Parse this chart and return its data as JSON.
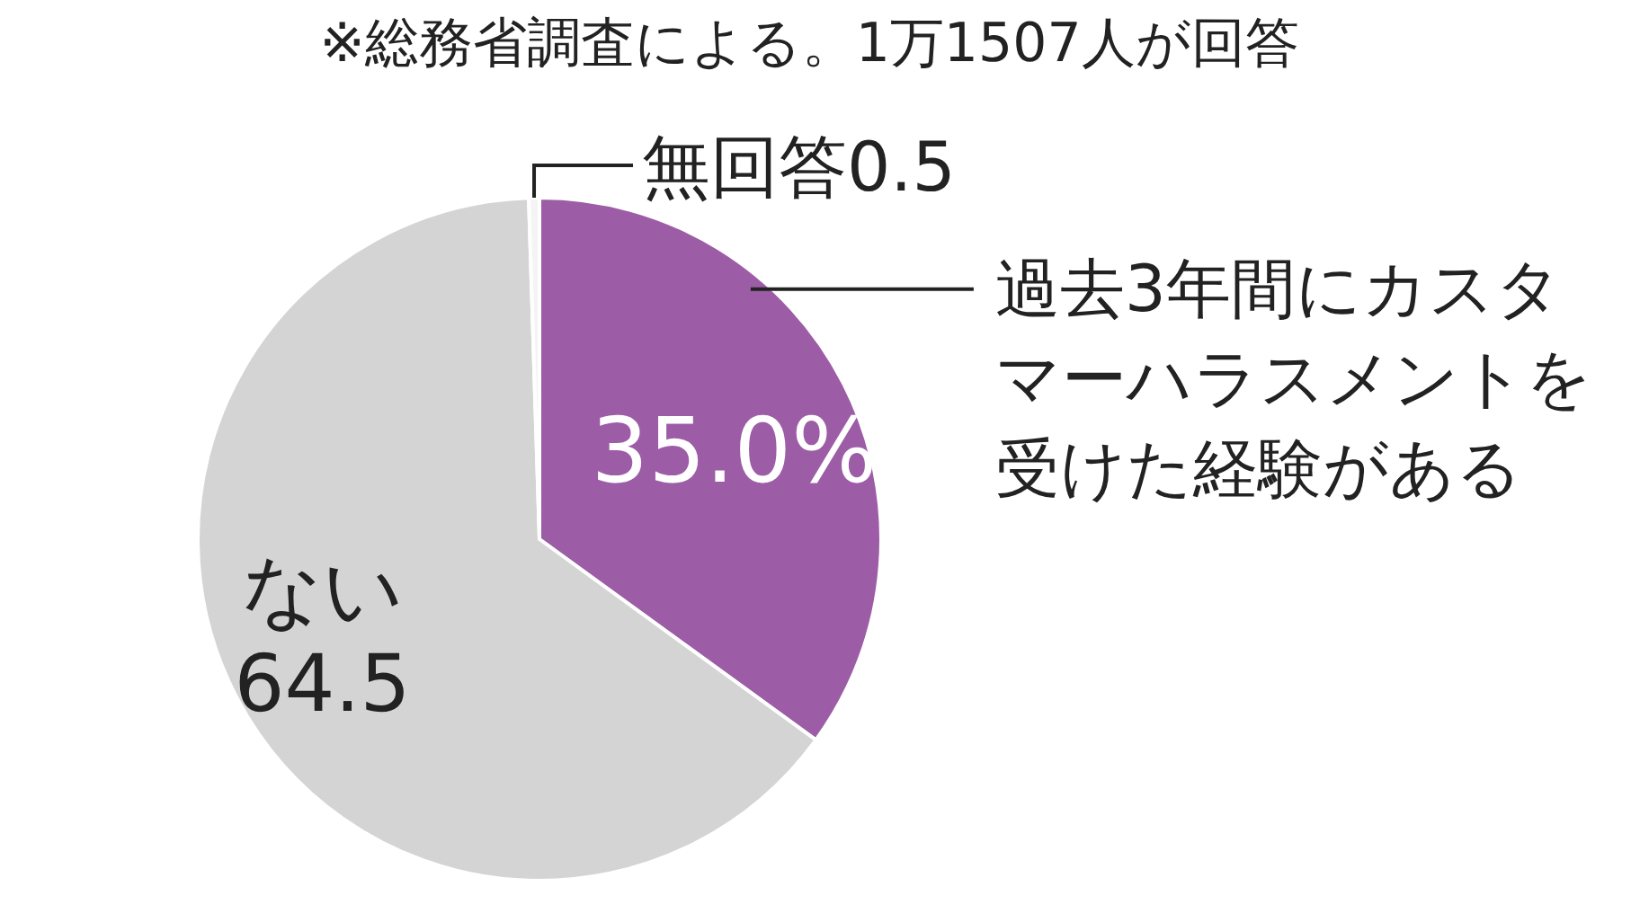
{
  "chart_data": {
    "type": "pie",
    "title": "※総務省調査による。1万1507人が回答",
    "categories": [
      "過去3年間にカスタマーハラスメントを受けた経験がある",
      "ない",
      "無回答"
    ],
    "values": [
      35.0,
      64.5,
      0.5
    ],
    "colors": [
      "#9c5ca6",
      "#d4d4d4",
      "#f4f4f4"
    ],
    "value_labels": [
      "35.0%",
      "64.5",
      "0.5"
    ]
  }
}
